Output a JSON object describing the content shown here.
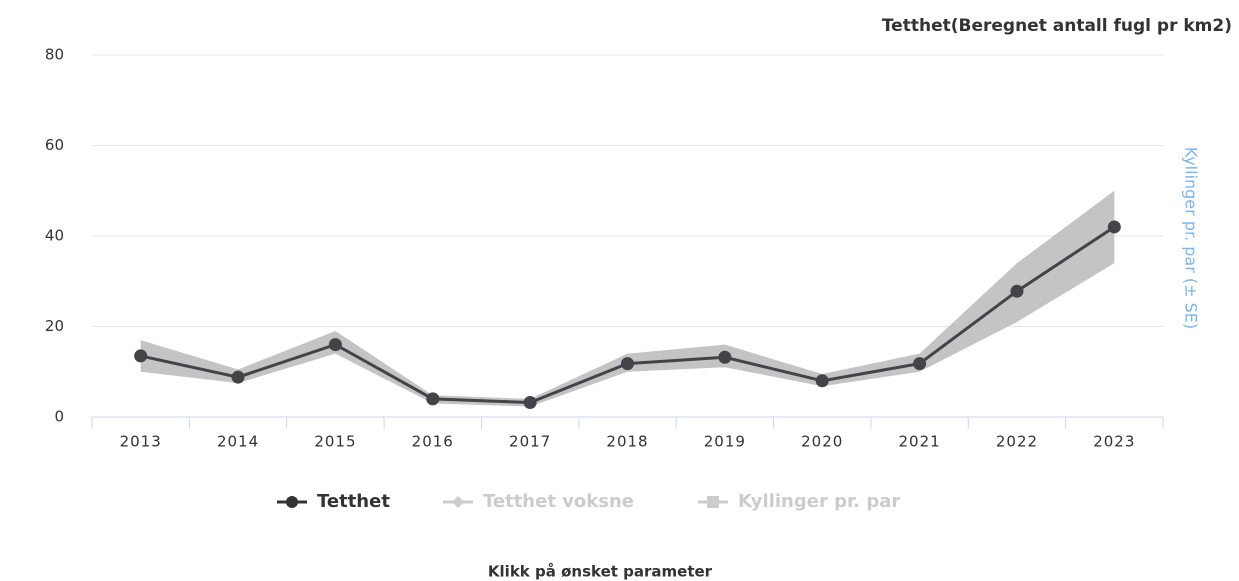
{
  "chart_data": {
    "type": "line",
    "title": "Tetthet(Beregnet antall fugl pr km2)",
    "y2_label": "Kyllinger pr. par (± SE)",
    "footer": "Klikk på ønsket parameter",
    "categories": [
      "2013",
      "2014",
      "2015",
      "2016",
      "2017",
      "2018",
      "2019",
      "2020",
      "2021",
      "2022",
      "2023"
    ],
    "series": [
      {
        "name": "Tetthet",
        "color": "#434348",
        "band_color": "#c4c4c4",
        "values": [
          13.5,
          8.8,
          16,
          4,
          3.2,
          11.8,
          13.2,
          8,
          11.8,
          27.8,
          42
        ],
        "low": [
          10,
          7.5,
          14,
          3,
          2.3,
          10,
          11,
          6.8,
          10,
          21,
          34
        ],
        "high": [
          17,
          10.5,
          19,
          4.8,
          4,
          14,
          16,
          9.5,
          14,
          34,
          50
        ]
      }
    ],
    "legend": [
      "Tetthet",
      "Tetthet voksne",
      "Kyllinger pr. par"
    ],
    "legend_colors": [
      "#333333",
      "#cccccc",
      "#cccccc"
    ],
    "ylim": [
      0,
      80
    ],
    "yticks": [
      0,
      20,
      40,
      60,
      80
    ],
    "grid": true
  }
}
